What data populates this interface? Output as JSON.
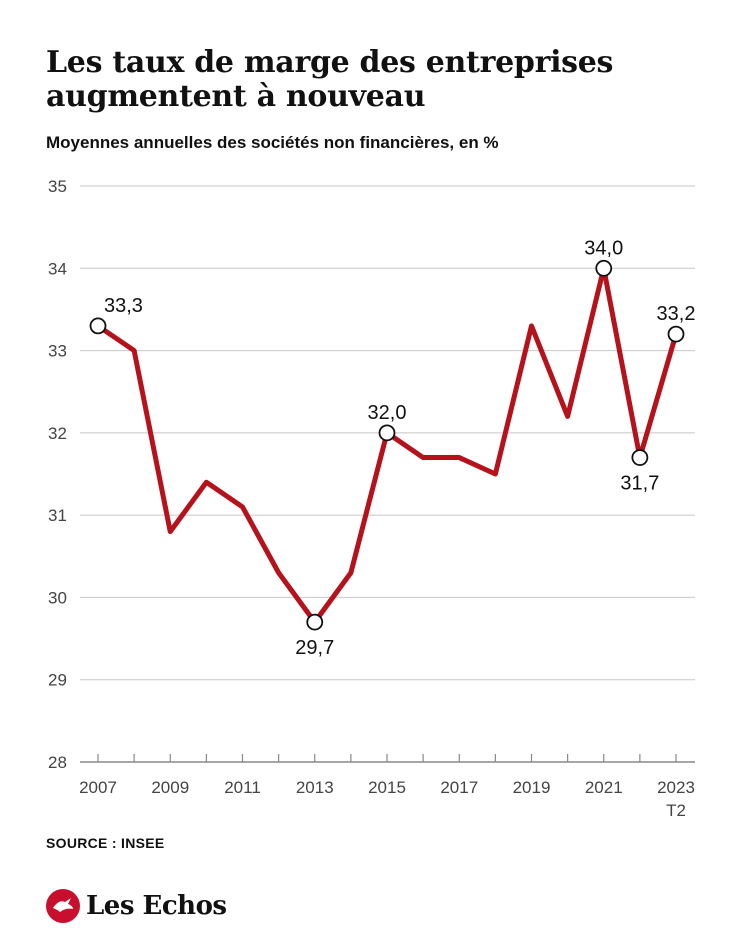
{
  "brand": {
    "name": "Les Echos",
    "logo_icon": "les-echos-bird-icon",
    "accent": "#c8102e"
  },
  "source": "SOURCE : INSEE",
  "chart_data": {
    "type": "line",
    "title": "Les taux de marge des entreprises augmentent à nouveau",
    "subtitle": "Moyennes annuelles des sociétés non financières, en %",
    "x": [
      "2007",
      "2008",
      "2009",
      "2010",
      "2011",
      "2012",
      "2013",
      "2014",
      "2015",
      "2016",
      "2017",
      "2018",
      "2019",
      "2020",
      "2021",
      "2022",
      "2023 T2"
    ],
    "series": [
      {
        "values": [
          33.3,
          33.0,
          30.8,
          31.4,
          31.1,
          30.3,
          29.7,
          30.3,
          32.0,
          31.7,
          31.7,
          31.5,
          33.3,
          32.2,
          34.0,
          31.7,
          33.2
        ],
        "color": "#b5121b"
      }
    ],
    "annotations": [
      {
        "index": 0,
        "label": "33,3",
        "position": "above"
      },
      {
        "index": 6,
        "label": "29,7",
        "position": "below"
      },
      {
        "index": 8,
        "label": "32,0",
        "position": "above"
      },
      {
        "index": 14,
        "label": "34,0",
        "position": "above"
      },
      {
        "index": 15,
        "label": "31,7",
        "position": "below"
      },
      {
        "index": 16,
        "label": "33,2",
        "position": "above"
      }
    ],
    "x_tick_labels": [
      {
        "index": 0,
        "label": "2007"
      },
      {
        "index": 2,
        "label": "2009"
      },
      {
        "index": 4,
        "label": "2011"
      },
      {
        "index": 6,
        "label": "2013"
      },
      {
        "index": 8,
        "label": "2015"
      },
      {
        "index": 10,
        "label": "2017"
      },
      {
        "index": 12,
        "label": "2019"
      },
      {
        "index": 14,
        "label": "2021"
      },
      {
        "index": 16,
        "label": "2023",
        "sublabel": "T2"
      }
    ],
    "y_ticks": [
      28,
      29,
      30,
      31,
      32,
      33,
      34,
      35
    ],
    "ylim": [
      28,
      35
    ],
    "grid": true,
    "legend": "none"
  }
}
